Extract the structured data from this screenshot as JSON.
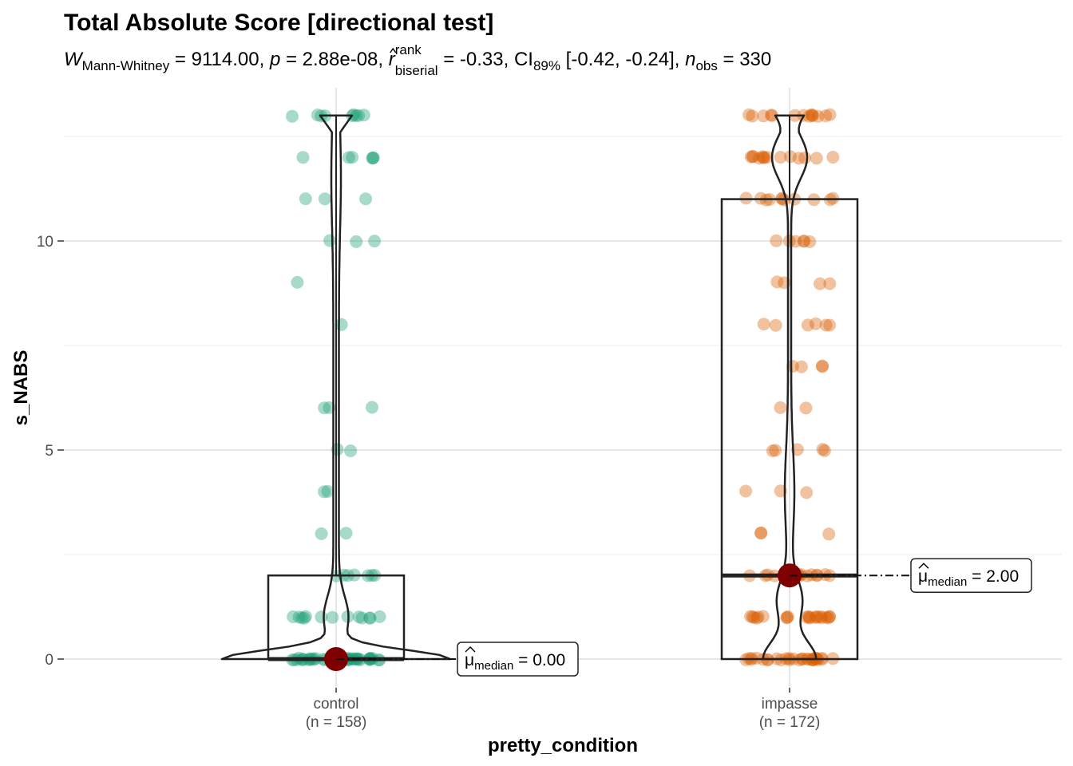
{
  "chart_data": {
    "type": "violin-box-scatter",
    "title": "Total Absolute Score [directional test]",
    "subtitle": {
      "W_symbol": "W",
      "W_sub": "Mann-Whitney",
      "W_val": " = 9114.00, ",
      "p_symbol": "p",
      "p_val": " = 2.88e-08, ",
      "r_symbol": "r",
      "r_sup": "rank",
      "r_sub": "biserial",
      "r_val": " = -0.33, ",
      "ci_text": "CI",
      "ci_sub": "89%",
      "ci_val": " [-0.42, -0.24], ",
      "n_symbol": "n",
      "n_sub": "obs",
      "n_val": " = 330"
    },
    "xlabel": "pretty_condition",
    "ylabel": "s_NABS",
    "ylim": [
      -0.5,
      13.5
    ],
    "yticks": [
      "0",
      "5",
      "10"
    ],
    "grid": true,
    "groups": [
      {
        "name": "control",
        "n_label": "(n = 158)",
        "color": "#1b9e77",
        "median": 0,
        "q1": 0,
        "q3": 2,
        "max": 13,
        "median_label_mu": "μ",
        "median_label_sub": "median",
        "median_label_val": " = 0.00",
        "points": [
          {
            "y": 13,
            "count": 9
          },
          {
            "y": 12,
            "count": 6
          },
          {
            "y": 11,
            "count": 3
          },
          {
            "y": 10,
            "count": 3
          },
          {
            "y": 9,
            "count": 1
          },
          {
            "y": 8,
            "count": 1
          },
          {
            "y": 6,
            "count": 3
          },
          {
            "y": 5,
            "count": 2
          },
          {
            "y": 4,
            "count": 2
          },
          {
            "y": 3,
            "count": 2
          },
          {
            "y": 2,
            "count": 7
          },
          {
            "y": 1,
            "count": 13
          },
          {
            "y": 0,
            "count": 40
          }
        ]
      },
      {
        "name": "impasse",
        "n_label": "(n = 172)",
        "color": "#d95f02",
        "median": 2,
        "q1": 0,
        "q3": 11,
        "max": 13,
        "median_label_mu": "μ",
        "median_label_sub": "median",
        "median_label_val": " = 2.00",
        "points": [
          {
            "y": 13,
            "count": 14
          },
          {
            "y": 12,
            "count": 14
          },
          {
            "y": 11,
            "count": 11
          },
          {
            "y": 10,
            "count": 6
          },
          {
            "y": 9,
            "count": 4
          },
          {
            "y": 8,
            "count": 6
          },
          {
            "y": 7,
            "count": 4
          },
          {
            "y": 6,
            "count": 2
          },
          {
            "y": 5,
            "count": 5
          },
          {
            "y": 4,
            "count": 3
          },
          {
            "y": 3,
            "count": 3
          },
          {
            "y": 2,
            "count": 14
          },
          {
            "y": 1,
            "count": 22
          },
          {
            "y": 0,
            "count": 30
          }
        ]
      }
    ]
  }
}
